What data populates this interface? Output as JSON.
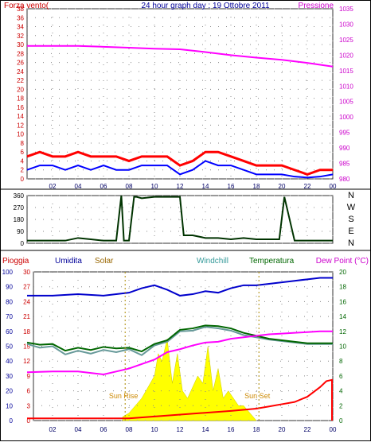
{
  "chart_data": [
    {
      "type": "line",
      "title": "24 hour graph day : 19 Ottobre 2011",
      "left_axis_label": "Forza vento(",
      "right_axis_label": "Pressione",
      "x_ticks": [
        "02",
        "04",
        "06",
        "08",
        "10",
        "12",
        "14",
        "16",
        "18",
        "20",
        "22",
        "00"
      ],
      "wind_ticks": [
        "0",
        "2",
        "4",
        "6",
        "8",
        "10",
        "12",
        "14",
        "16",
        "18",
        "20",
        "22",
        "24",
        "26",
        "28",
        "30",
        "32",
        "34",
        "36",
        "38"
      ],
      "wind_range": [
        0,
        38
      ],
      "pressure_ticks": [
        "980",
        "985",
        "990",
        "995",
        "1000",
        "1005",
        "1010",
        "1015",
        "1020",
        "1025",
        "1030",
        "1035"
      ],
      "pressure_range": [
        980,
        1035
      ],
      "grid": true,
      "series": [
        {
          "id": "pressure",
          "color": "#ff00ff",
          "x": [
            0,
            2,
            4,
            6,
            8,
            10,
            12,
            14,
            16,
            18,
            20,
            22,
            24
          ],
          "values": [
            1023,
            1023,
            1023,
            1022.7,
            1022.4,
            1022.1,
            1021.9,
            1021,
            1020,
            1019.2,
            1018.5,
            1017.5,
            1016.3
          ]
        },
        {
          "id": "wind_gust",
          "color": "#ff0000",
          "x": [
            0,
            1,
            2,
            3,
            4,
            5,
            6,
            7,
            8,
            9,
            10,
            11,
            12,
            13,
            14,
            15,
            16,
            17,
            18,
            19,
            20,
            21,
            22,
            23,
            24
          ],
          "values": [
            5,
            6,
            5,
            5,
            6,
            5,
            5,
            5,
            4,
            5,
            5,
            5,
            3,
            4,
            6,
            6,
            5,
            4,
            3,
            3,
            3,
            2,
            1,
            2,
            2
          ]
        },
        {
          "id": "wind_avg",
          "color": "#0000ff",
          "x": [
            0,
            1,
            2,
            3,
            4,
            5,
            6,
            7,
            8,
            9,
            10,
            11,
            12,
            13,
            14,
            15,
            16,
            17,
            18,
            19,
            20,
            21,
            22,
            23,
            24
          ],
          "values": [
            2,
            3,
            3,
            2,
            3,
            2,
            3,
            2,
            2,
            3,
            3,
            3,
            1,
            2,
            4,
            3,
            3,
            2,
            1,
            1,
            1,
            0.5,
            0.3,
            0.5,
            1
          ]
        }
      ]
    },
    {
      "type": "line",
      "direction_ticks": [
        "0",
        "90",
        "180",
        "270",
        "360"
      ],
      "direction_range": [
        0,
        360
      ],
      "compass_labels": [
        "N",
        "W",
        "S",
        "E",
        "N"
      ],
      "x_ticks": [
        "02",
        "04",
        "06",
        "08",
        "10",
        "12",
        "14",
        "16",
        "18",
        "20",
        "22",
        "00"
      ],
      "grid": true,
      "series": [
        {
          "id": "wind_direction",
          "color": "#003300",
          "x": [
            0,
            1,
            2,
            3,
            4,
            5,
            6,
            6.5,
            7,
            7.4,
            7.6,
            8,
            8.4,
            8.6,
            9,
            10,
            11,
            12,
            12.3,
            13,
            14,
            15,
            16,
            17,
            18,
            19,
            19.8,
            20.2,
            21,
            22,
            23,
            24
          ],
          "values": [
            20,
            20,
            20,
            20,
            40,
            30,
            20,
            20,
            20,
            360,
            20,
            20,
            350,
            350,
            340,
            350,
            350,
            350,
            60,
            60,
            40,
            40,
            30,
            40,
            30,
            30,
            30,
            350,
            20,
            20,
            20,
            20
          ]
        }
      ]
    },
    {
      "type": "line",
      "labels": {
        "rain": "Pioggia",
        "humidity": "Umidita",
        "solar": "Solar",
        "windchill": "Windchill",
        "temperature": "Temperatura",
        "dewpoint": "Dew Point (°C)"
      },
      "annotations": {
        "sunrise": "Sun Rise",
        "sunset": "Sun Set"
      },
      "x_ticks": [
        "02",
        "04",
        "06",
        "08",
        "10",
        "12",
        "14",
        "16",
        "18",
        "20",
        "22",
        "00"
      ],
      "humidity_ticks": [
        "0",
        "10",
        "20",
        "30",
        "40",
        "50",
        "60",
        "70",
        "80",
        "90",
        "100"
      ],
      "humidity_range": [
        0,
        100
      ],
      "temp_ticks": [
        "0",
        "3",
        "6",
        "9",
        "12",
        "15",
        "18",
        "21",
        "24",
        "27",
        "30"
      ],
      "temp_range": [
        0,
        30
      ],
      "right_ticks": [
        "0",
        "2",
        "4",
        "6",
        "8",
        "10",
        "12",
        "14",
        "16",
        "18",
        "20"
      ],
      "right_range": [
        0,
        20
      ],
      "grid": true,
      "series": [
        {
          "id": "humidity",
          "color": "#0000cc",
          "x": [
            0,
            2,
            4,
            6,
            7,
            8,
            9,
            10,
            11,
            12,
            13,
            14,
            15,
            16,
            17,
            18,
            19,
            20,
            21,
            22,
            23,
            24
          ],
          "values": [
            84,
            84,
            85,
            84,
            85,
            86,
            89,
            91,
            88,
            84,
            85,
            87,
            86,
            89,
            91,
            91,
            92,
            93,
            94,
            95,
            96,
            96
          ]
        },
        {
          "id": "temperature",
          "color": "#006600",
          "x": [
            0,
            1,
            2,
            3,
            4,
            5,
            6,
            7,
            8,
            9,
            10,
            11,
            12,
            13,
            14,
            15,
            16,
            17,
            18,
            19,
            20,
            21,
            22,
            23,
            24
          ],
          "values": [
            17.5,
            17.2,
            17.3,
            16.4,
            16.8,
            16.5,
            16.9,
            16.7,
            16.8,
            16.3,
            17.3,
            17.8,
            19.2,
            19.4,
            19.8,
            19.7,
            19.4,
            18.8,
            18.4,
            18.0,
            17.8,
            17.6,
            17.4,
            17.4,
            17.4
          ]
        },
        {
          "id": "windchill",
          "color": "#669999",
          "x": [
            0,
            1,
            2,
            3,
            4,
            5,
            6,
            7,
            8,
            9,
            10,
            11,
            12,
            13,
            14,
            15,
            16,
            17,
            18,
            19,
            20,
            21,
            22,
            23,
            24
          ],
          "values": [
            17.3,
            16.8,
            17.0,
            15.9,
            16.4,
            16.0,
            16.5,
            16.2,
            16.6,
            15.8,
            17.1,
            17.6,
            19.0,
            19.1,
            19.6,
            19.4,
            19.1,
            18.5,
            18.2,
            17.9,
            17.7,
            17.5,
            17.3,
            17.3,
            17.3
          ]
        },
        {
          "id": "dewpoint",
          "color": "#ff00ff",
          "x": [
            0,
            2,
            4,
            6,
            7,
            8,
            9,
            10,
            11,
            12,
            13,
            14,
            15,
            16,
            17,
            18,
            19,
            20,
            21,
            22,
            23,
            24
          ],
          "values": [
            6.5,
            6.6,
            6.6,
            6.2,
            6.6,
            7.0,
            7.6,
            8.2,
            9.2,
            9.6,
            10.1,
            10.5,
            10.6,
            11.0,
            11.2,
            11.4,
            11.6,
            11.7,
            11.8,
            11.9,
            12.0,
            12.0
          ]
        },
        {
          "id": "rain",
          "color": "#ff0000",
          "x": [
            0,
            8,
            16,
            18,
            19,
            20,
            21,
            22,
            23,
            23.5,
            24
          ],
          "values": [
            0.3,
            0.3,
            1.3,
            1.6,
            1.9,
            2.2,
            2.5,
            3.2,
            4.5,
            5.3,
            5.5
          ]
        },
        {
          "id": "solar",
          "color": "#ffff00",
          "x": [
            7.5,
            8,
            8.5,
            9,
            9.5,
            10,
            10.3,
            10.6,
            11,
            11.4,
            11.8,
            12.2,
            12.6,
            13,
            13.4,
            13.8,
            14.2,
            14.6,
            15,
            15.4,
            15.8,
            16.2,
            16.6,
            17,
            17.5,
            18
          ],
          "values": [
            0.5,
            1,
            2,
            3,
            4.5,
            6,
            9,
            8,
            11,
            5,
            9,
            4,
            3,
            4.5,
            6,
            5,
            10,
            4,
            7,
            3,
            4,
            3,
            2,
            2,
            1,
            0
          ]
        }
      ]
    }
  ]
}
